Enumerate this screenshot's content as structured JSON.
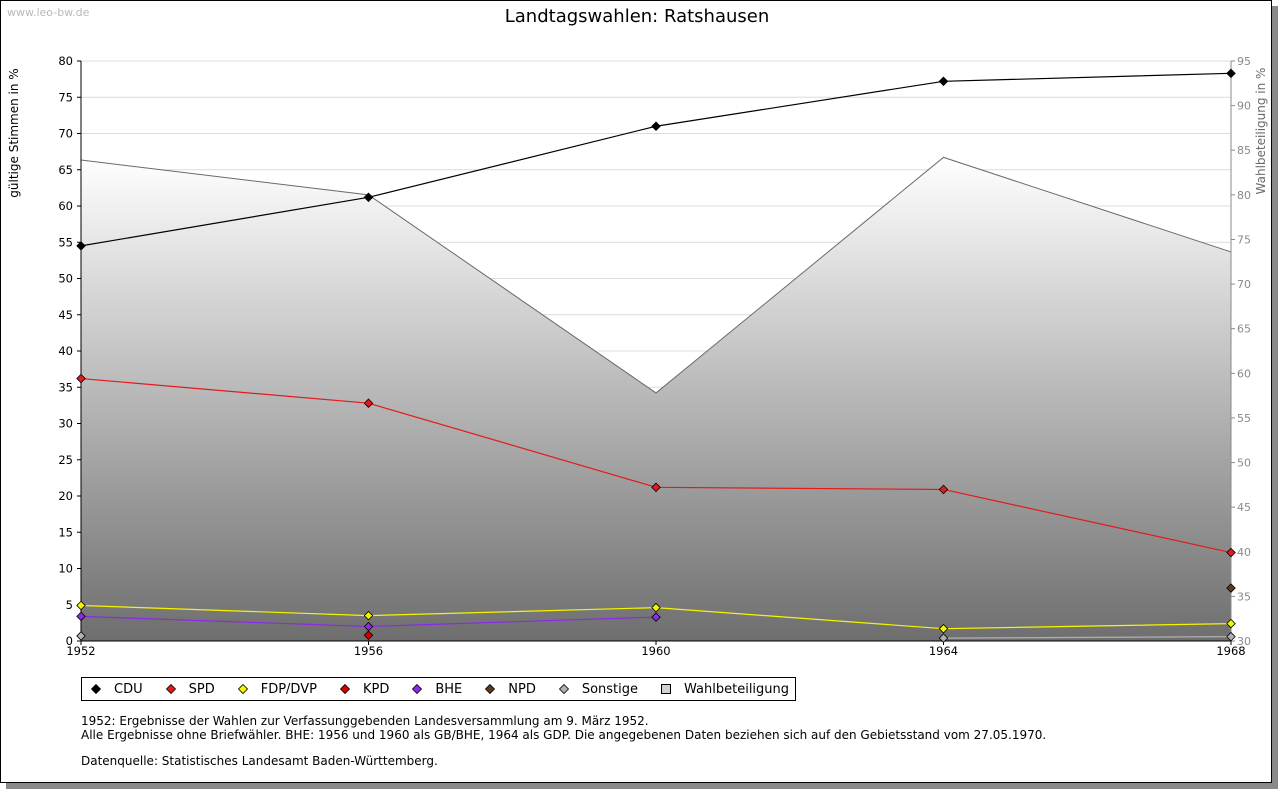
{
  "watermark": "www.leo-bw.de",
  "chart_data": {
    "type": "line",
    "title": "Landtagswahlen: Ratshausen",
    "x": [
      1952,
      1956,
      1960,
      1964,
      1968
    ],
    "ylabel": "gültige Stimmen in %",
    "ylabel_right": "Wahlbeteiligung in %",
    "ylim": [
      0,
      80
    ],
    "ylim_right": [
      30,
      95
    ],
    "yticks": [
      0,
      5,
      10,
      15,
      20,
      25,
      30,
      35,
      40,
      45,
      50,
      55,
      60,
      65,
      70,
      75,
      80
    ],
    "yticks_right": [
      30,
      35,
      40,
      45,
      50,
      55,
      60,
      65,
      70,
      75,
      80,
      85,
      90,
      95
    ],
    "grid": true,
    "series": [
      {
        "name": "CDU",
        "color": "#000000",
        "values": [
          54.5,
          61.2,
          71.0,
          77.2,
          78.3
        ]
      },
      {
        "name": "SPD",
        "color": "#e41a1c",
        "values": [
          36.2,
          32.8,
          21.2,
          20.9,
          12.2
        ]
      },
      {
        "name": "FDP/DVP",
        "color": "#f5f500",
        "values": [
          4.9,
          3.5,
          4.6,
          1.7,
          2.4
        ]
      },
      {
        "name": "KPD",
        "color": "#d40000",
        "values": [
          null,
          0.8,
          null,
          null,
          null
        ]
      },
      {
        "name": "BHE",
        "color": "#8a2be2",
        "values": [
          3.4,
          2.0,
          3.3,
          null,
          null
        ]
      },
      {
        "name": "NPD",
        "color": "#5c3a1e",
        "values": [
          null,
          null,
          null,
          null,
          7.3
        ]
      },
      {
        "name": "Sonstige",
        "color": "#b0b0b0",
        "values": [
          0.7,
          null,
          null,
          0.4,
          0.6
        ]
      },
      {
        "name": "Wahlbeteiligung",
        "color": "#c8c8c8",
        "axis": "right",
        "type": "area",
        "values": [
          83.9,
          80.0,
          57.8,
          84.2,
          73.6
        ]
      }
    ]
  },
  "notes": {
    "line1": "1952: Ergebnisse der Wahlen zur Verfassunggebenden Landesversammlung am 9. März 1952.",
    "line2": "Alle Ergebnisse ohne Briefwähler. BHE: 1956 und 1960 als GB/BHE, 1964 als GDP. Die angegebenen Daten beziehen sich auf den Gebietsstand vom 27.05.1970.",
    "source": "Datenquelle: Statistisches Landesamt Baden-Württemberg."
  }
}
